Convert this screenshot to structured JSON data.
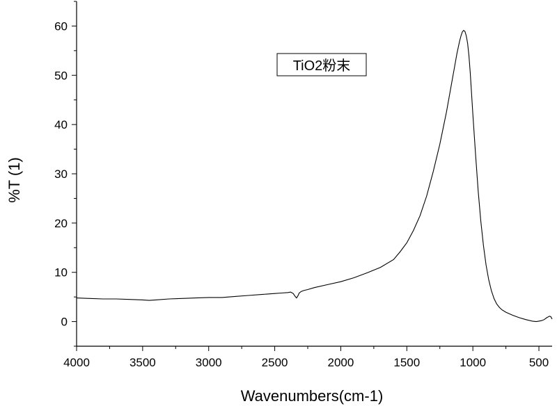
{
  "chart_data": {
    "type": "line",
    "title": "",
    "xlabel": "Wavenumbers(cm-1)",
    "ylabel": "%T (1)",
    "legend_box_text": "TiO2粉末",
    "legend_placement": "top-center",
    "xlim": [
      4000,
      400
    ],
    "ylim": [
      -5,
      65
    ],
    "x_reversed": true,
    "grid": false,
    "x_ticks": [
      4000,
      3500,
      3000,
      2500,
      2000,
      1500,
      1000,
      500
    ],
    "y_ticks": [
      0,
      10,
      20,
      30,
      40,
      50,
      60
    ],
    "line_color": "#000000",
    "series": [
      {
        "x": [
          4000,
          3900,
          3800,
          3700,
          3600,
          3500,
          3450,
          3400,
          3300,
          3200,
          3100,
          3000,
          2900,
          2800,
          2700,
          2600,
          2500,
          2450,
          2400,
          2380,
          2360,
          2345,
          2335,
          2325,
          2315,
          2300,
          2280,
          2250,
          2200,
          2100,
          2000,
          1900,
          1800,
          1700,
          1600,
          1550,
          1500,
          1450,
          1400,
          1350,
          1300,
          1250,
          1200,
          1180,
          1160,
          1140,
          1120,
          1100,
          1090,
          1080,
          1070,
          1060,
          1050,
          1040,
          1030,
          1020,
          1000,
          980,
          960,
          940,
          920,
          900,
          880,
          860,
          840,
          820,
          800,
          780,
          750,
          700,
          650,
          600,
          550,
          520,
          500,
          480,
          460,
          440,
          420,
          410,
          400
        ],
        "y": [
          4.8,
          4.7,
          4.6,
          4.6,
          4.5,
          4.4,
          4.3,
          4.4,
          4.6,
          4.7,
          4.8,
          4.9,
          4.9,
          5.1,
          5.3,
          5.5,
          5.7,
          5.8,
          5.9,
          6.0,
          5.7,
          5.1,
          4.8,
          5.2,
          5.8,
          6.1,
          6.3,
          6.5,
          6.9,
          7.5,
          8.1,
          8.9,
          9.9,
          11.0,
          12.6,
          14.2,
          16.0,
          18.5,
          21.5,
          25.5,
          30.5,
          36.0,
          42.5,
          45.5,
          48.5,
          51.5,
          54.5,
          57.0,
          58.0,
          58.8,
          59.1,
          58.9,
          58.0,
          56.5,
          54.0,
          50.5,
          42.0,
          34.0,
          26.5,
          20.5,
          15.5,
          11.5,
          8.5,
          6.3,
          4.7,
          3.6,
          2.9,
          2.4,
          1.9,
          1.3,
          0.8,
          0.4,
          0.1,
          0.0,
          0.1,
          0.2,
          0.4,
          0.8,
          1.1,
          1.0,
          0.5
        ]
      }
    ]
  }
}
